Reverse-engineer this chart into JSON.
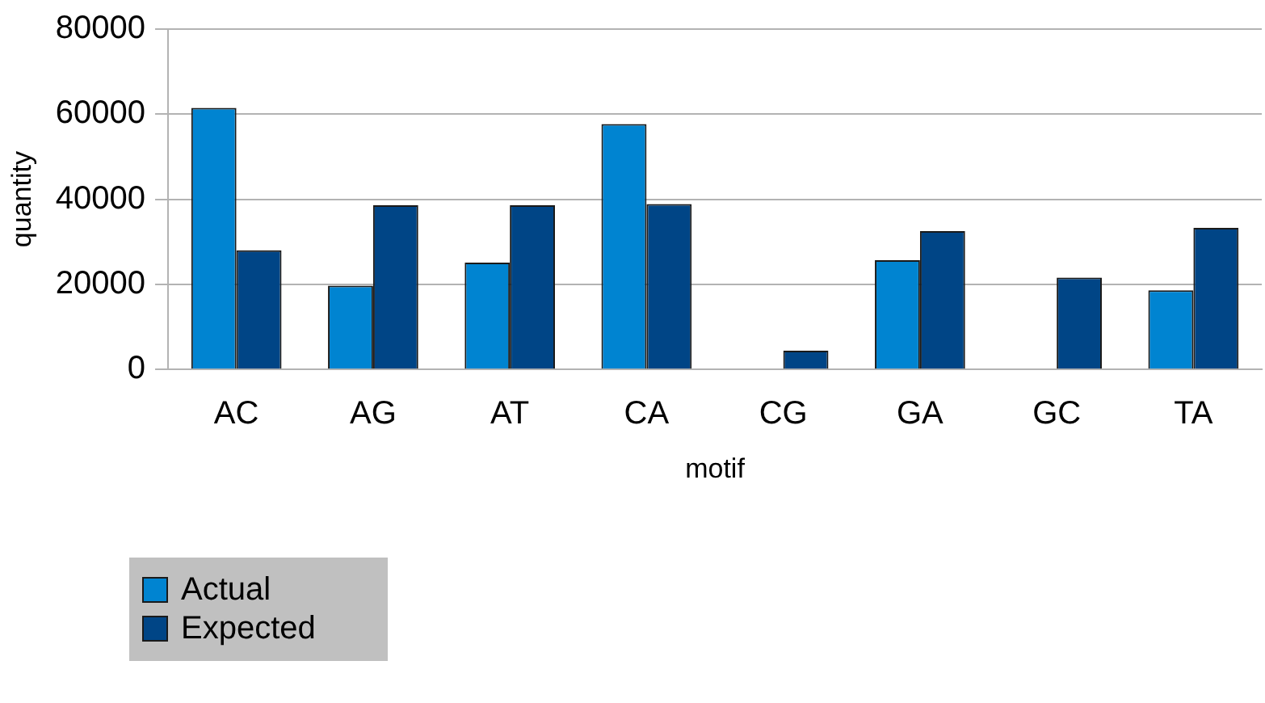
{
  "chart_data": {
    "type": "bar",
    "xlabel": "motif",
    "ylabel": "quantity",
    "categories": [
      "AC",
      "AG",
      "AT",
      "CA",
      "CG",
      "GA",
      "GC",
      "TA"
    ],
    "series": [
      {
        "name": "Actual",
        "color": "#0084d1",
        "values": [
          61500,
          19700,
          25100,
          57700,
          0,
          25700,
          0,
          18600
        ]
      },
      {
        "name": "Expected",
        "color": "#004586",
        "values": [
          28000,
          38600,
          38600,
          38900,
          4400,
          32500,
          21600,
          33300
        ]
      }
    ],
    "ylim": [
      0,
      80000
    ],
    "yticks": [
      0,
      20000,
      40000,
      60000,
      80000
    ],
    "grid": "y",
    "legend": "bottom left"
  }
}
